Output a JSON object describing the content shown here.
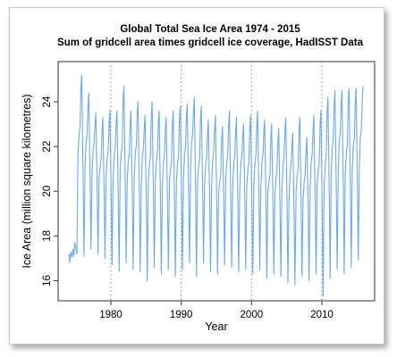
{
  "chart_data": {
    "type": "line",
    "title": "Global Total Sea Ice Area 1974 - 2015",
    "subtitle": "Sum of gridcell area times gridcell ice coverage, HadISST Data",
    "xlabel": "Year",
    "ylabel": "Ice Area (million square kilometres)",
    "xlim": [
      1972.5,
      2017.5
    ],
    "ylim": [
      15.1,
      25.8
    ],
    "x_ticks": [
      "1980",
      "1990",
      "2000",
      "2010"
    ],
    "y_ticks": [
      "16",
      "18",
      "20",
      "22",
      "24"
    ],
    "grid": "vertical dotted lines at 1980, 1990, 2000, 2010",
    "line_color": "#6fa8e8",
    "series": [
      {
        "x_start": 1974,
        "x_end": 2015,
        "pattern": "annual cycle: maximum in late year, minimum in early year",
        "annual_max": [
          17.7,
          25.2,
          24.4,
          23.5,
          23.3,
          23.6,
          23.6,
          24.7,
          23.6,
          24.0,
          23.4,
          24.0,
          23.6,
          23.3,
          23.6,
          23.8,
          23.9,
          24.2,
          23.8,
          23.2,
          23.4,
          22.9,
          23.6,
          23.3,
          23.0,
          23.4,
          23.6,
          23.2,
          23.0,
          22.8,
          23.3,
          22.6,
          23.3,
          22.4,
          23.4,
          23.6,
          24.2,
          24.5,
          24.5,
          24.6,
          24.6,
          24.7
        ],
        "annual_min": [
          16.8,
          17.2,
          17.1,
          17.4,
          17.2,
          17.0,
          16.7,
          16.4,
          16.8,
          16.5,
          16.4,
          16.0,
          16.6,
          16.3,
          16.5,
          16.2,
          16.5,
          16.8,
          16.2,
          16.8,
          16.4,
          16.3,
          16.7,
          16.6,
          16.4,
          16.5,
          16.3,
          16.5,
          16.1,
          16.3,
          16.2,
          15.9,
          15.8,
          16.2,
          16.0,
          16.3,
          15.3,
          16.1,
          16.5,
          16.3,
          16.6,
          16.9
        ]
      }
    ]
  }
}
